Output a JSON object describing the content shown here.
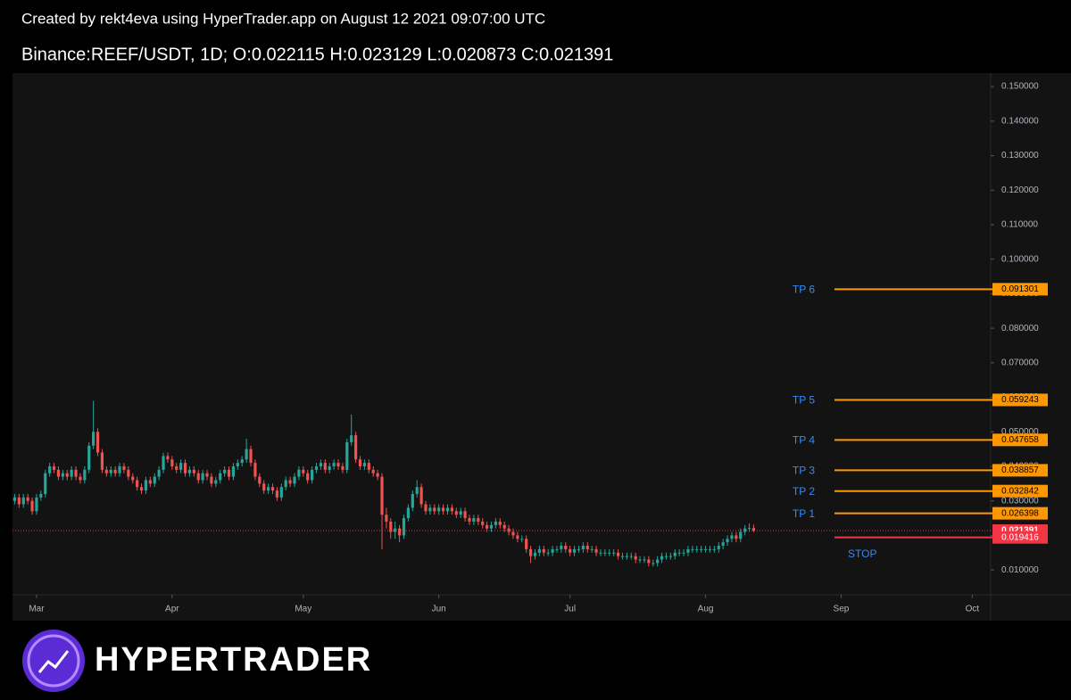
{
  "chart_data": {
    "type": "candlestick",
    "caption": "Created by rekt4eva using HyperTrader.app on August 12 2021 09:07:00 UTC",
    "title": "Binance:REEF/USDT, 1D;  O:0.022115 H:0.023129 L:0.020873 C:0.021391",
    "brand": "HYPERTRADER",
    "up_color": "#26a69a",
    "down_color": "#ef5350",
    "open": [
      0.03,
      0.031,
      0.029,
      0.031,
      0.03,
      0.027,
      0.031,
      0.032,
      0.038,
      0.04,
      0.039,
      0.037,
      0.038,
      0.037,
      0.039,
      0.037,
      0.036,
      0.039,
      0.046,
      0.05,
      0.044,
      0.039,
      0.038,
      0.039,
      0.038,
      0.04,
      0.039,
      0.037,
      0.036,
      0.034,
      0.033,
      0.036,
      0.035,
      0.037,
      0.039,
      0.043,
      0.042,
      0.04,
      0.039,
      0.041,
      0.038,
      0.039,
      0.038,
      0.036,
      0.038,
      0.037,
      0.035,
      0.036,
      0.038,
      0.039,
      0.037,
      0.04,
      0.041,
      0.042,
      0.045,
      0.041,
      0.037,
      0.035,
      0.033,
      0.034,
      0.033,
      0.031,
      0.034,
      0.036,
      0.035,
      0.037,
      0.039,
      0.038,
      0.036,
      0.039,
      0.04,
      0.041,
      0.039,
      0.04,
      0.041,
      0.04,
      0.039,
      0.047,
      0.049,
      0.042,
      0.04,
      0.041,
      0.039,
      0.038,
      0.037,
      0.026,
      0.024,
      0.021,
      0.022,
      0.02,
      0.025,
      0.028,
      0.032,
      0.034,
      0.029,
      0.027,
      0.028,
      0.027,
      0.028,
      0.027,
      0.028,
      0.027,
      0.026,
      0.027,
      0.025,
      0.024,
      0.025,
      0.024,
      0.023,
      0.022,
      0.023,
      0.024,
      0.023,
      0.022,
      0.021,
      0.02,
      0.019,
      0.019,
      0.016,
      0.014,
      0.015,
      0.016,
      0.015,
      0.015,
      0.016,
      0.016,
      0.017,
      0.016,
      0.015,
      0.016,
      0.016,
      0.017,
      0.016,
      0.016,
      0.015,
      0.015,
      0.015,
      0.015,
      0.015,
      0.014,
      0.014,
      0.014,
      0.014,
      0.013,
      0.013,
      0.013,
      0.012,
      0.012,
      0.013,
      0.014,
      0.014,
      0.014,
      0.015,
      0.015,
      0.015,
      0.016,
      0.016,
      0.016,
      0.016,
      0.016,
      0.016,
      0.016,
      0.017,
      0.018,
      0.019,
      0.02,
      0.019,
      0.021,
      0.022,
      0.022115
    ],
    "high": [
      0.032,
      0.032,
      0.032,
      0.032,
      0.031,
      0.032,
      0.033,
      0.039,
      0.041,
      0.041,
      0.04,
      0.039,
      0.039,
      0.04,
      0.04,
      0.038,
      0.04,
      0.047,
      0.059,
      0.051,
      0.045,
      0.04,
      0.04,
      0.04,
      0.041,
      0.041,
      0.04,
      0.038,
      0.037,
      0.035,
      0.037,
      0.037,
      0.038,
      0.04,
      0.044,
      0.044,
      0.043,
      0.041,
      0.042,
      0.042,
      0.04,
      0.04,
      0.039,
      0.039,
      0.039,
      0.038,
      0.037,
      0.039,
      0.04,
      0.04,
      0.041,
      0.042,
      0.043,
      0.048,
      0.046,
      0.042,
      0.038,
      0.036,
      0.035,
      0.035,
      0.034,
      0.035,
      0.037,
      0.037,
      0.038,
      0.04,
      0.04,
      0.039,
      0.04,
      0.041,
      0.042,
      0.042,
      0.041,
      0.042,
      0.042,
      0.041,
      0.048,
      0.055,
      0.05,
      0.043,
      0.042,
      0.042,
      0.04,
      0.039,
      0.038,
      0.028,
      0.025,
      0.024,
      0.023,
      0.026,
      0.029,
      0.033,
      0.036,
      0.035,
      0.03,
      0.029,
      0.029,
      0.029,
      0.029,
      0.029,
      0.029,
      0.028,
      0.028,
      0.028,
      0.026,
      0.026,
      0.026,
      0.025,
      0.024,
      0.024,
      0.025,
      0.025,
      0.024,
      0.023,
      0.022,
      0.021,
      0.02,
      0.02,
      0.017,
      0.016,
      0.017,
      0.017,
      0.016,
      0.017,
      0.017,
      0.018,
      0.018,
      0.017,
      0.017,
      0.017,
      0.018,
      0.018,
      0.017,
      0.017,
      0.016,
      0.016,
      0.016,
      0.016,
      0.016,
      0.015,
      0.015,
      0.015,
      0.015,
      0.014,
      0.014,
      0.014,
      0.013,
      0.014,
      0.015,
      0.015,
      0.015,
      0.016,
      0.016,
      0.016,
      0.017,
      0.017,
      0.017,
      0.017,
      0.017,
      0.017,
      0.017,
      0.018,
      0.019,
      0.02,
      0.021,
      0.021,
      0.022,
      0.023,
      0.0235,
      0.023129
    ],
    "low": [
      0.029,
      0.028,
      0.028,
      0.029,
      0.026,
      0.026,
      0.03,
      0.031,
      0.037,
      0.038,
      0.036,
      0.036,
      0.036,
      0.036,
      0.036,
      0.035,
      0.035,
      0.038,
      0.045,
      0.043,
      0.038,
      0.037,
      0.037,
      0.037,
      0.037,
      0.038,
      0.036,
      0.035,
      0.033,
      0.032,
      0.032,
      0.034,
      0.034,
      0.036,
      0.038,
      0.041,
      0.039,
      0.038,
      0.038,
      0.037,
      0.037,
      0.037,
      0.035,
      0.035,
      0.036,
      0.034,
      0.034,
      0.035,
      0.037,
      0.036,
      0.036,
      0.039,
      0.04,
      0.041,
      0.04,
      0.036,
      0.034,
      0.032,
      0.032,
      0.032,
      0.03,
      0.03,
      0.033,
      0.034,
      0.034,
      0.036,
      0.037,
      0.035,
      0.035,
      0.038,
      0.039,
      0.038,
      0.038,
      0.039,
      0.039,
      0.038,
      0.038,
      0.046,
      0.041,
      0.039,
      0.039,
      0.038,
      0.037,
      0.036,
      0.016,
      0.022,
      0.019,
      0.019,
      0.018,
      0.019,
      0.024,
      0.027,
      0.031,
      0.028,
      0.026,
      0.026,
      0.026,
      0.026,
      0.026,
      0.026,
      0.026,
      0.025,
      0.025,
      0.024,
      0.023,
      0.023,
      0.023,
      0.022,
      0.021,
      0.021,
      0.022,
      0.022,
      0.021,
      0.02,
      0.019,
      0.018,
      0.018,
      0.015,
      0.012,
      0.013,
      0.014,
      0.014,
      0.014,
      0.014,
      0.015,
      0.015,
      0.015,
      0.014,
      0.014,
      0.015,
      0.015,
      0.015,
      0.015,
      0.014,
      0.014,
      0.014,
      0.014,
      0.014,
      0.013,
      0.013,
      0.013,
      0.013,
      0.012,
      0.012,
      0.012,
      0.011,
      0.011,
      0.011,
      0.012,
      0.013,
      0.013,
      0.013,
      0.014,
      0.014,
      0.014,
      0.015,
      0.015,
      0.015,
      0.015,
      0.015,
      0.015,
      0.015,
      0.016,
      0.017,
      0.018,
      0.018,
      0.018,
      0.02,
      0.021,
      0.020873
    ],
    "close": [
      0.031,
      0.029,
      0.031,
      0.03,
      0.027,
      0.031,
      0.032,
      0.038,
      0.04,
      0.039,
      0.037,
      0.038,
      0.037,
      0.039,
      0.037,
      0.036,
      0.039,
      0.046,
      0.05,
      0.044,
      0.039,
      0.038,
      0.039,
      0.038,
      0.04,
      0.039,
      0.037,
      0.036,
      0.034,
      0.033,
      0.036,
      0.035,
      0.037,
      0.039,
      0.043,
      0.042,
      0.04,
      0.039,
      0.041,
      0.038,
      0.039,
      0.038,
      0.036,
      0.038,
      0.037,
      0.035,
      0.036,
      0.038,
      0.039,
      0.037,
      0.04,
      0.041,
      0.042,
      0.045,
      0.041,
      0.037,
      0.035,
      0.033,
      0.034,
      0.033,
      0.031,
      0.034,
      0.036,
      0.035,
      0.037,
      0.039,
      0.038,
      0.036,
      0.039,
      0.04,
      0.041,
      0.039,
      0.04,
      0.041,
      0.04,
      0.039,
      0.047,
      0.049,
      0.042,
      0.04,
      0.041,
      0.039,
      0.038,
      0.037,
      0.026,
      0.024,
      0.021,
      0.022,
      0.02,
      0.025,
      0.028,
      0.032,
      0.034,
      0.029,
      0.027,
      0.028,
      0.027,
      0.028,
      0.027,
      0.028,
      0.027,
      0.026,
      0.027,
      0.025,
      0.024,
      0.025,
      0.024,
      0.023,
      0.022,
      0.023,
      0.024,
      0.023,
      0.022,
      0.021,
      0.02,
      0.019,
      0.019,
      0.016,
      0.014,
      0.015,
      0.016,
      0.015,
      0.015,
      0.016,
      0.016,
      0.017,
      0.016,
      0.015,
      0.016,
      0.016,
      0.017,
      0.016,
      0.016,
      0.015,
      0.015,
      0.015,
      0.015,
      0.015,
      0.014,
      0.014,
      0.014,
      0.014,
      0.013,
      0.013,
      0.013,
      0.012,
      0.012,
      0.013,
      0.014,
      0.014,
      0.014,
      0.015,
      0.015,
      0.015,
      0.016,
      0.016,
      0.016,
      0.016,
      0.016,
      0.016,
      0.016,
      0.017,
      0.018,
      0.019,
      0.02,
      0.019,
      0.021,
      0.022,
      0.022115,
      0.021391
    ],
    "levels": [
      {
        "name": "TP 6",
        "value": 0.091301,
        "color": "#ff9800"
      },
      {
        "name": "TP 5",
        "value": 0.059243,
        "color": "#ff9800"
      },
      {
        "name": "TP 4",
        "value": 0.047658,
        "color": "#ff9800"
      },
      {
        "name": "TP 3",
        "value": 0.038857,
        "color": "#ff9800"
      },
      {
        "name": "TP 2",
        "value": 0.032842,
        "color": "#ff9800"
      },
      {
        "name": "TP 1",
        "value": 0.026398,
        "color": "#ff9800"
      },
      {
        "name": "STOP",
        "value": 0.019416,
        "color": "#f23645"
      }
    ],
    "last_color": "#f23645",
    "xlim": [
      -0.5,
      223.2
    ],
    "xticks": [
      {
        "value": 5,
        "label": "Mar"
      },
      {
        "value": 36,
        "label": "Apr"
      },
      {
        "value": 66,
        "label": "May"
      },
      {
        "value": 97,
        "label": "Jun"
      },
      {
        "value": 127,
        "label": "Jul"
      },
      {
        "value": 158,
        "label": "Aug"
      },
      {
        "value": 189,
        "label": "Sep"
      },
      {
        "value": 219,
        "label": "Oct"
      }
    ],
    "ylim": [
      0.0028,
      0.1539
    ],
    "yticks": [
      {
        "value": 0.01,
        "label": "0.010000"
      },
      {
        "value": 0.02,
        "label": "0.020000"
      },
      {
        "value": 0.03,
        "label": "0.030000"
      },
      {
        "value": 0.04,
        "label": "0.040000"
      },
      {
        "value": 0.05,
        "label": "0.050000"
      },
      {
        "value": 0.06,
        "label": "0.060000"
      },
      {
        "value": 0.07,
        "label": "0.070000"
      },
      {
        "value": 0.08,
        "label": "0.080000"
      },
      {
        "value": 0.09,
        "label": "0.090000"
      },
      {
        "value": 0.1,
        "label": "0.100000"
      },
      {
        "value": 0.11,
        "label": "0.110000"
      },
      {
        "value": 0.12,
        "label": "0.120000"
      },
      {
        "value": 0.13,
        "label": "0.130000"
      },
      {
        "value": 0.14,
        "label": "0.140000"
      },
      {
        "value": 0.15,
        "label": "0.150000"
      }
    ],
    "grid": false
  }
}
